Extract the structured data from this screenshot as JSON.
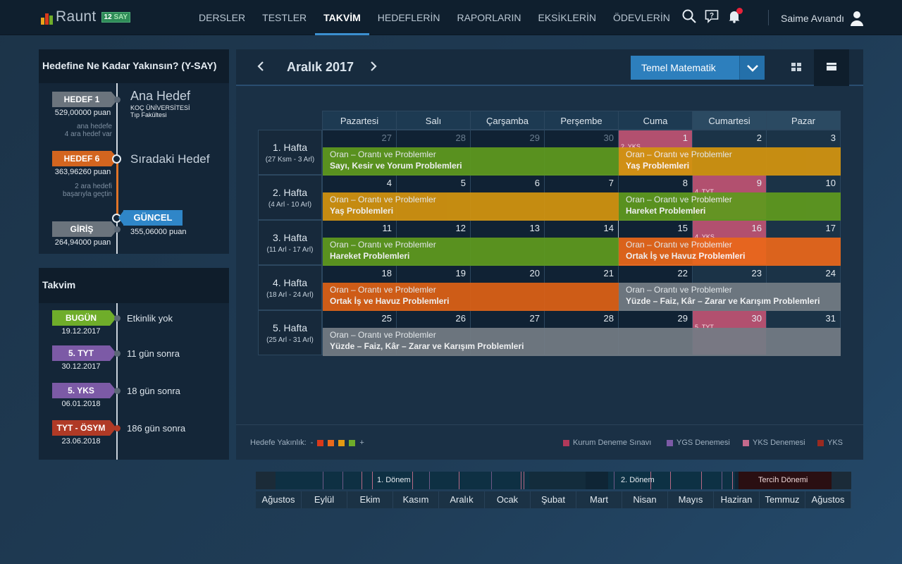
{
  "brand": {
    "name": "Raunt",
    "badge_num": "12",
    "badge_txt": "SAY"
  },
  "nav": [
    "DERSLER",
    "TESTLER",
    "TAKVİM",
    "HEDEFLERİN",
    "RAPORLARIN",
    "EKSİKLERİN",
    "ÖDEVLERİN"
  ],
  "user": {
    "name": "Saime Avıandı"
  },
  "goal_panel": {
    "title": "Hedefine Ne Kadar Yakınsın? (Y-SAY)",
    "h1_tag": "HEDEF 1",
    "h1_score": "529,00000 puan",
    "ana_title": "Ana Hedef",
    "ana_uni": "KOÇ ÜNİVERSİTESİ",
    "ana_fac": "Tıp Fakültesi",
    "note1a": "ana hedefe",
    "note1b": "4 ara hedef var",
    "h6_tag": "HEDEF 6",
    "h6_score": "363,96260 puan",
    "next_title": "Sıradaki Hedef",
    "note2a": "2 ara hedefi",
    "note2b": "başarıyla geçtin",
    "current_tag": "GÜNCEL",
    "current_score": "355,06000 puan",
    "giris_tag": "GİRİŞ",
    "giris_score": "264,94000 puan"
  },
  "takvim_panel": {
    "title": "Takvim",
    "items": [
      {
        "tag": "BUGÜN",
        "date": "19.12.2017",
        "text": "Etkinlik yok",
        "color": "#6fad2a"
      },
      {
        "tag": "5. TYT",
        "date": "30.12.2017",
        "text": "11 gün sonra",
        "color": "#7c5aa6"
      },
      {
        "tag": "5. YKS",
        "date": "06.01.2018",
        "text": "18 gün sonra",
        "color": "#7c5aa6"
      },
      {
        "tag": "TYT - ÖSYM",
        "date": "23.06.2018",
        "text": "186 gün sonra",
        "color": "#b03a26"
      }
    ]
  },
  "calendar": {
    "month": "Aralık 2017",
    "subject": "Temel Matematik",
    "days": [
      "Pazartesi",
      "Salı",
      "Çarşamba",
      "Perşembe",
      "Cuma",
      "Cumartesi",
      "Pazar"
    ],
    "weeks": [
      {
        "label": "1. Hafta",
        "range": "(27 Ksm - 3 Arl)",
        "nums": [
          "27",
          "28",
          "29",
          "30",
          "1",
          "2",
          "3"
        ]
      },
      {
        "label": "2. Hafta",
        "range": "(4 Arl - 10 Arl)",
        "nums": [
          "4",
          "5",
          "6",
          "7",
          "8",
          "9",
          "10"
        ]
      },
      {
        "label": "3. Hafta",
        "range": "(11 Arl - 17 Arl)",
        "nums": [
          "11",
          "12",
          "13",
          "14",
          "15",
          "16",
          "17"
        ]
      },
      {
        "label": "4. Hafta",
        "range": "(18 Arl - 24 Arl)",
        "nums": [
          "18",
          "19",
          "20",
          "21",
          "22",
          "23",
          "24"
        ]
      },
      {
        "label": "5. Hafta",
        "range": "(25 Arl - 31 Arl)",
        "nums": [
          "25",
          "26",
          "27",
          "28",
          "29",
          "30",
          "31"
        ]
      }
    ],
    "cell_events": {
      "w0d4": "2. YKS",
      "w1d5": "4. TYT",
      "w2d5": "4. YKS",
      "w4d5": "5. TYT"
    },
    "bars": [
      {
        "week": 0,
        "start": 0,
        "span": 4,
        "color": "#5f9a1e",
        "l1": "Oran – Orantı ve Problemler",
        "l2": "Sayı, Kesir ve Yorum Problemleri"
      },
      {
        "week": 0,
        "start": 4,
        "span": 3,
        "color": "#d3940f",
        "l1": "Oran – Orantı ve Problemler",
        "l2": "Yaş Problemleri"
      },
      {
        "week": 1,
        "start": 0,
        "span": 4,
        "color": "#d3940f",
        "l1": "Oran – Orantı ve Problemler",
        "l2": "Yaş Problemleri"
      },
      {
        "week": 1,
        "start": 4,
        "span": 3,
        "color": "#5f9a1e",
        "l1": "Oran – Orantı ve Problemler",
        "l2": "Hareket Problemleri"
      },
      {
        "week": 2,
        "start": 0,
        "span": 4,
        "color": "#5f9a1e",
        "l1": "Oran – Orantı ve Problemler",
        "l2": "Hareket Problemleri"
      },
      {
        "week": 2,
        "start": 4,
        "span": 3,
        "color": "#ea671a",
        "l1": "Oran – Orantı ve Problemler",
        "l2": "Ortak İş ve Havuz Problemleri"
      },
      {
        "week": 3,
        "start": 0,
        "span": 4,
        "color": "#dd6115",
        "l1": "Oran – Orantı ve Problemler",
        "l2": "Ortak İş ve Havuz Problemleri"
      },
      {
        "week": 3,
        "start": 4,
        "span": 3,
        "color": "#737c84",
        "l1": "Oran – Orantı ve Problemler",
        "l2": "Yüzde – Faiz, Kâr – Zarar ve Karışım Problemleri"
      },
      {
        "week": 4,
        "start": 0,
        "span": 7,
        "color": "#737c84",
        "l1": "Oran – Orantı ve Problemler",
        "l2": "Yüzde – Faiz, Kâr – Zarar ve Karışım Problemleri"
      }
    ]
  },
  "legend": {
    "left_label": "Hedefe Yakınlık:",
    "minus": "-",
    "plus": "+",
    "scale_colors": [
      "#d9391a",
      "#ea6a1c",
      "#e39a13",
      "#6fad2a"
    ],
    "items": [
      {
        "label": "Kurum Deneme Sınavı",
        "color": "#b1395a"
      },
      {
        "label": "YGS Denemesi",
        "color": "#7c5aa6"
      },
      {
        "label": "YKS Denemesi",
        "color": "#c46a8c"
      },
      {
        "label": "YKS",
        "color": "#9a2a20"
      }
    ]
  },
  "timeline": {
    "term1": "1. Dönem",
    "term2": "2. Dönem",
    "tercih": "Tercih Dönemi",
    "months": [
      "Ağustos",
      "Eylül",
      "Ekim",
      "Kasım",
      "Aralık",
      "Ocak",
      "Şubat",
      "Mart",
      "Nisan",
      "Mayıs",
      "Haziran",
      "Temmuz",
      "Ağustos"
    ]
  }
}
